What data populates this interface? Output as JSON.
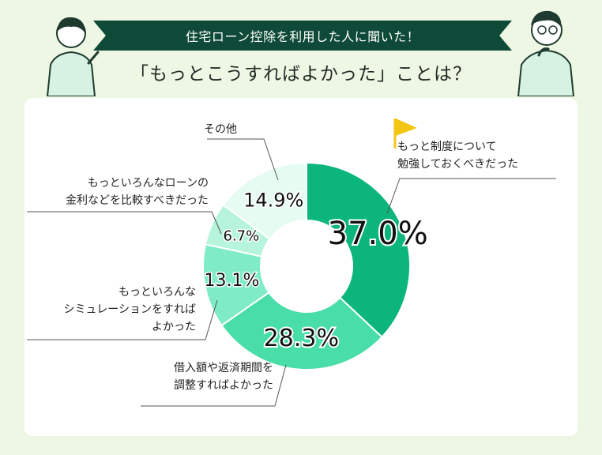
{
  "header": {
    "banner": "住宅ローン控除を利用した人に聞いた！",
    "subtitle": "「もっとこうすればよかった」ことは？"
  },
  "colors": {
    "background": "#eef7e3",
    "banner": "#0e4a37"
  },
  "chart_data": {
    "type": "pie",
    "donut": true,
    "unit": "%",
    "slices": [
      {
        "label": [
          "もっと制度について",
          "勉強しておくべきだった"
        ],
        "value": 37.0,
        "display": "37.0%",
        "color": "#0bb57c"
      },
      {
        "label": [
          "借入額や返済期間を",
          "調整すればよかった"
        ],
        "value": 28.3,
        "display": "28.3%",
        "color": "#49dea8"
      },
      {
        "label": [
          "もっといろんな",
          "シミュレーションをすれば",
          "よかった"
        ],
        "value": 13.1,
        "display": "13.1%",
        "color": "#80ecc7"
      },
      {
        "label": [
          "もっといろんなローンの",
          "金利などを比較すべきだった"
        ],
        "value": 6.7,
        "display": "6.7%",
        "color": "#b6f5dc"
      },
      {
        "label": [
          "その他"
        ],
        "value": 14.9,
        "display": "14.9%",
        "color": "#e6fbf2"
      }
    ]
  }
}
